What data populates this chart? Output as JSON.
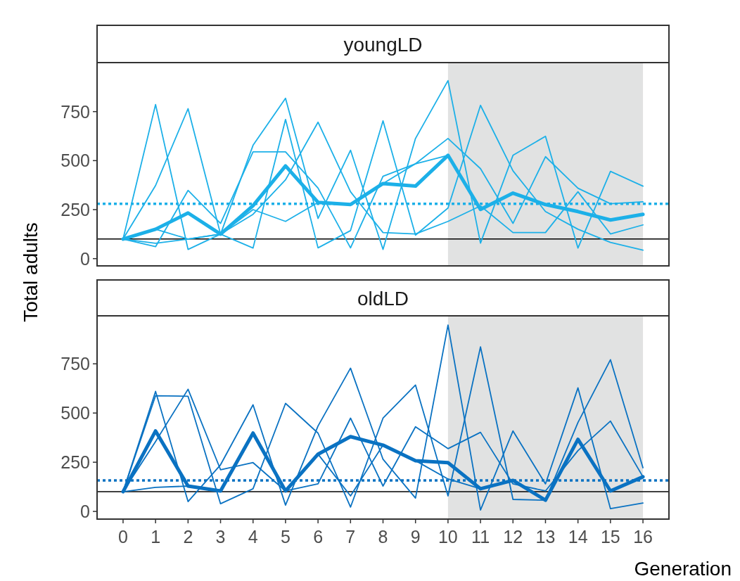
{
  "chart_data": [
    {
      "type": "line",
      "title": "youngLD",
      "ylabel": "Total adults",
      "x": [
        0,
        1,
        2,
        3,
        4,
        5,
        6,
        7,
        8,
        9,
        10,
        11,
        12,
        13,
        14,
        15,
        16
      ],
      "xlim": [
        -0.8,
        16.8
      ],
      "ylim": [
        -37,
        1000
      ],
      "yticks": [
        0,
        250,
        500,
        750
      ],
      "tick_labels": "y",
      "grid": false,
      "line_style": "solid",
      "marker": "none",
      "series": [
        {
          "color": "#1cb0e8",
          "values": [
            100,
            786,
            47,
            125,
            578,
            818,
            205,
            553,
            47,
            613,
            908,
            79,
            527,
            624,
            54,
            445,
            370
          ]
        },
        {
          "color": "#1cb0e8",
          "values": [
            100,
            373,
            765,
            125,
            54,
            710,
            55,
            143,
            703,
            120,
            258,
            782,
            448,
            240,
            150,
            83,
            43
          ]
        },
        {
          "color": "#1cb0e8",
          "values": [
            100,
            61,
            348,
            180,
            545,
            545,
            360,
            55,
            420,
            484,
            613,
            459,
            180,
            520,
            359,
            280,
            290
          ]
        },
        {
          "color": "#1cb0e8",
          "values": [
            100,
            78,
            100,
            125,
            226,
            402,
            696,
            341,
            133,
            126,
            190,
            269,
            133,
            133,
            341,
            126,
            172
          ]
        },
        {
          "color": "#1cb0e8",
          "values": [
            100,
            150,
            100,
            125,
            250,
            190,
            287,
            276,
            383,
            484,
            527,
            251,
            334,
            276,
            240,
            197,
            226
          ]
        },
        {
          "color": "#1cb0e8",
          "values": [
            100,
            150,
            233,
            125,
            270,
            473,
            287,
            276,
            383,
            370,
            527,
            251,
            334,
            276,
            240,
            197,
            226
          ]
        }
      ],
      "ref_lines": [
        {
          "axis": "y",
          "value": 100,
          "color": "#000000",
          "line_style": "solid"
        },
        {
          "axis": "y",
          "value": 280,
          "color": "#1cb0e8",
          "line_style": "dotted"
        }
      ],
      "bands": [
        {
          "axis": "x",
          "from": 10,
          "to": 16,
          "color": "#e1e2e2"
        }
      ]
    },
    {
      "type": "line",
      "title": "oldLD",
      "xlabel": "Generation",
      "x": [
        0,
        1,
        2,
        3,
        4,
        5,
        6,
        7,
        8,
        9,
        10,
        11,
        12,
        13,
        14,
        15,
        16
      ],
      "xlim": [
        -0.8,
        16.8
      ],
      "ylim": [
        -39,
        994
      ],
      "xticks": [
        0,
        1,
        2,
        3,
        4,
        5,
        6,
        7,
        8,
        9,
        10,
        11,
        12,
        13,
        14,
        15,
        16
      ],
      "yticks": [
        0,
        250,
        500,
        750
      ],
      "grid": false,
      "line_style": "solid",
      "marker": "none",
      "series": [
        {
          "color": "#0a72c2",
          "values": [
            100,
            610,
            50,
            237,
            542,
            32,
            434,
            728,
            265,
            68,
            947,
            7,
            409,
            140,
            628,
            14,
            43
          ]
        },
        {
          "color": "#0a72c2",
          "values": [
            100,
            588,
            585,
            39,
            115,
            549,
            398,
            22,
            474,
            642,
            79,
            836,
            61,
            57,
            452,
            771,
            222
          ]
        },
        {
          "color": "#0a72c2",
          "values": [
            100,
            355,
            621,
            212,
            248,
            104,
            140,
            474,
            129,
            430,
            319,
            402,
            140,
            104,
            309,
            459,
            176
          ]
        },
        {
          "color": "#0a72c2",
          "values": [
            100,
            122,
            129,
            104,
            398,
            104,
            291,
            79,
            337,
            258,
            165,
            115,
            158,
            57,
            366,
            104,
            176
          ]
        },
        {
          "color": "#0a72c2",
          "values": [
            100,
            409,
            129,
            104,
            398,
            104,
            291,
            380,
            337,
            258,
            248,
            115,
            158,
            57,
            366,
            104,
            176
          ]
        }
      ],
      "ref_lines": [
        {
          "axis": "y",
          "value": 100,
          "color": "#000000",
          "line_style": "solid"
        },
        {
          "axis": "y",
          "value": 158,
          "color": "#0a72c2",
          "line_style": "dotted"
        }
      ],
      "bands": [
        {
          "axis": "x",
          "from": 10,
          "to": 16,
          "color": "#e1e2e2"
        }
      ]
    }
  ]
}
